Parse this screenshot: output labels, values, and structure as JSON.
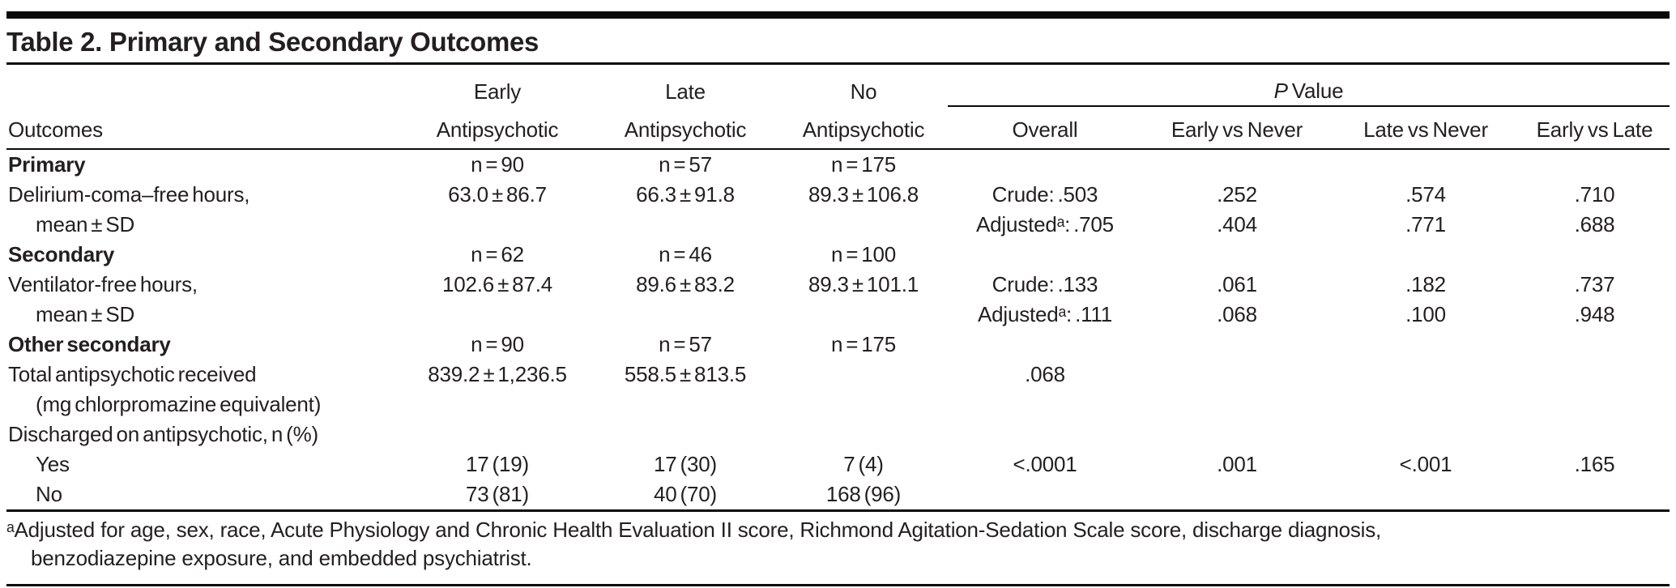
{
  "title": "Table 2. Primary and Secondary Outcomes",
  "header": {
    "outcomes": "Outcomes",
    "group_cols": [
      {
        "line1": "Early",
        "line2": "Antipsychotic"
      },
      {
        "line1": "Late",
        "line2": "Antipsychotic"
      },
      {
        "line1": "No",
        "line2": "Antipsychotic"
      }
    ],
    "p_value": {
      "italic": "P",
      "rest": " Value"
    },
    "p_subcols": [
      "Overall",
      "Early vs Never",
      "Late vs Never",
      "Early vs Late"
    ]
  },
  "rows": [
    {
      "label": "Primary",
      "style": "section",
      "cells": [
        "n = 90",
        "n = 57",
        "n = 175",
        "",
        "",
        "",
        ""
      ]
    },
    {
      "label": "Delirium-coma–free hours,",
      "style": "normal",
      "cells": [
        "63.0 ± 86.7",
        "66.3 ± 91.8",
        "89.3 ± 106.8",
        "Crude: .503",
        ".252",
        ".574",
        ".710"
      ]
    },
    {
      "label": "mean ± SD",
      "style": "indent",
      "cells": [
        "",
        "",
        "",
        "Adjustedᵃ: .705",
        ".404",
        ".771",
        ".688"
      ]
    },
    {
      "label": "Secondary",
      "style": "section",
      "cells": [
        "n = 62",
        "n = 46",
        "n = 100",
        "",
        "",
        "",
        ""
      ]
    },
    {
      "label": "Ventilator-free hours,",
      "style": "normal",
      "cells": [
        "102.6 ± 87.4",
        "89.6 ± 83.2",
        "89.3 ± 101.1",
        "Crude: .133",
        ".061",
        ".182",
        ".737"
      ]
    },
    {
      "label": "mean ± SD",
      "style": "indent",
      "cells": [
        "",
        "",
        "",
        "Adjustedᵃ: .111",
        ".068",
        ".100",
        ".948"
      ]
    },
    {
      "label": "Other secondary",
      "style": "section",
      "cells": [
        "n = 90",
        "n = 57",
        "n = 175",
        "",
        "",
        "",
        ""
      ]
    },
    {
      "label": "Total antipsychotic received",
      "style": "normal",
      "cells": [
        "839.2 ± 1,236.5",
        "558.5 ± 813.5",
        "",
        ".068",
        "",
        "",
        ""
      ]
    },
    {
      "label": "(mg chlorpromazine equivalent)",
      "style": "indent",
      "cells": [
        "",
        "",
        "",
        "",
        "",
        "",
        ""
      ]
    },
    {
      "label": "Discharged on antipsychotic, n (%)",
      "style": "normal",
      "cells": [
        "",
        "",
        "",
        "",
        "",
        "",
        ""
      ]
    },
    {
      "label": "Yes",
      "style": "indent",
      "cells": [
        "17 (19)",
        "17 (30)",
        "7 (4)",
        "<.0001",
        ".001",
        "<.001",
        ".165"
      ]
    },
    {
      "label": "No",
      "style": "indent",
      "cells": [
        "73 (81)",
        "40 (70)",
        "168 (96)",
        "",
        "",
        "",
        ""
      ]
    }
  ],
  "footnote": {
    "line1": "ᵃAdjusted for age, sex, race, Acute Physiology and Chronic Health Evaluation II score, Richmond Agitation-Sedation Scale score, discharge diagnosis,",
    "line2": "benzodiazepine exposure, and embedded psychiatrist."
  }
}
